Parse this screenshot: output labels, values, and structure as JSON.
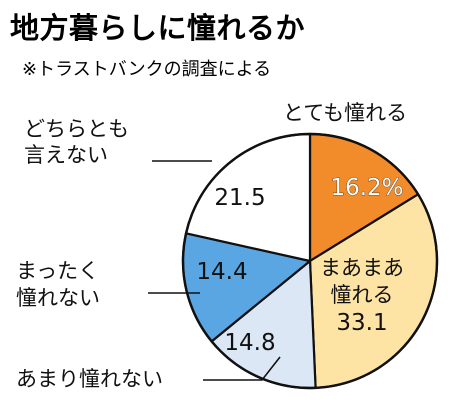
{
  "chart_data": {
    "type": "pie",
    "title": "地方暮らしに憧れるか",
    "subtitle": "※トラストバンクの調査による",
    "slices": [
      {
        "label": "とても憧れる",
        "label_lines": [
          "とても憧れる"
        ],
        "value": 16.2,
        "value_text": "16.2%",
        "color": "#f28b2a"
      },
      {
        "label": "まあまあ憧れる",
        "label_lines": [
          "まあまあ",
          "憧れる"
        ],
        "value": 33.1,
        "value_text": "33.1",
        "color": "#fde3a4"
      },
      {
        "label": "あまり憧れない",
        "label_lines": [
          "あまり憧れない"
        ],
        "value": 14.8,
        "value_text": "14.8",
        "color": "#dce7f6"
      },
      {
        "label": "まったく憧れない",
        "label_lines": [
          "まったく",
          "憧れない"
        ],
        "value": 14.4,
        "value_text": "14.4",
        "color": "#5aa6e2"
      },
      {
        "label": "どちらとも言えない",
        "label_lines": [
          "どちらとも",
          "言えない"
        ],
        "value": 21.5,
        "value_text": "21.5",
        "color": "#ffffff"
      }
    ]
  }
}
